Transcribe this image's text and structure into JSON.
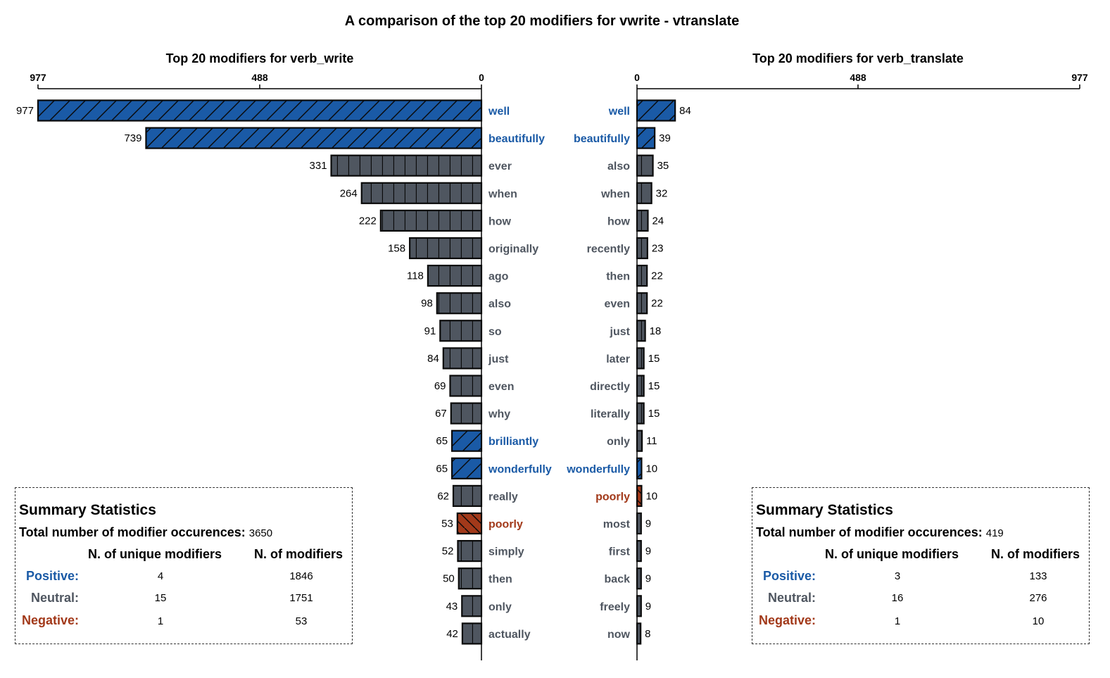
{
  "title": "A comparison of the top 20 modifiers for vwrite - vtranslate",
  "colors": {
    "positive": "#1a5aa6",
    "neutral": "#4f5660",
    "negative": "#a2391a",
    "bar_edge": "#0a0a0a"
  },
  "chart_data": [
    {
      "type": "bar",
      "orientation": "horizontal",
      "direction": "right-to-left",
      "title": "Top 20 modifiers for verb_write",
      "xlim": [
        977,
        0
      ],
      "xticks": [
        "977",
        "488",
        "0"
      ],
      "categories": [
        "well",
        "beautifully",
        "ever",
        "when",
        "how",
        "originally",
        "ago",
        "also",
        "so",
        "just",
        "even",
        "why",
        "brilliantly",
        "wonderfully",
        "really",
        "poorly",
        "simply",
        "then",
        "only",
        "actually"
      ],
      "values": [
        977,
        739,
        331,
        264,
        222,
        158,
        118,
        98,
        91,
        84,
        69,
        67,
        65,
        65,
        62,
        53,
        52,
        50,
        43,
        42
      ],
      "sentiment": [
        "positive",
        "positive",
        "neutral",
        "neutral",
        "neutral",
        "neutral",
        "neutral",
        "neutral",
        "neutral",
        "neutral",
        "neutral",
        "neutral",
        "positive",
        "positive",
        "neutral",
        "negative",
        "neutral",
        "neutral",
        "neutral",
        "neutral"
      ]
    },
    {
      "type": "bar",
      "orientation": "horizontal",
      "direction": "left-to-right",
      "title": "Top 20 modifiers for verb_translate",
      "xlim": [
        0,
        977
      ],
      "xticks": [
        "0",
        "488",
        "977"
      ],
      "categories": [
        "well",
        "beautifully",
        "also",
        "when",
        "how",
        "recently",
        "then",
        "even",
        "just",
        "later",
        "directly",
        "literally",
        "only",
        "wonderfully",
        "poorly",
        "most",
        "first",
        "back",
        "freely",
        "now"
      ],
      "values": [
        84,
        39,
        35,
        32,
        24,
        23,
        22,
        22,
        18,
        15,
        15,
        15,
        11,
        10,
        10,
        9,
        9,
        9,
        9,
        8
      ],
      "sentiment": [
        "positive",
        "positive",
        "neutral",
        "neutral",
        "neutral",
        "neutral",
        "neutral",
        "neutral",
        "neutral",
        "neutral",
        "neutral",
        "neutral",
        "neutral",
        "positive",
        "negative",
        "neutral",
        "neutral",
        "neutral",
        "neutral",
        "neutral"
      ]
    }
  ],
  "stats": {
    "left": {
      "title": "Summary Statistics",
      "total_label": "Total number of modifier occurences:",
      "total_value": "3650",
      "col_unique": "N. of unique modifiers",
      "col_count": "N. of modifiers",
      "rows": [
        {
          "label": "Positive:",
          "unique": "4",
          "count": "1846"
        },
        {
          "label": "Neutral:",
          "unique": "15",
          "count": "1751"
        },
        {
          "label": "Negative:",
          "unique": "1",
          "count": "53"
        }
      ]
    },
    "right": {
      "title": "Summary Statistics",
      "total_label": "Total number of modifier occurences:",
      "total_value": "419",
      "col_unique": "N. of unique modifiers",
      "col_count": "N. of modifiers",
      "rows": [
        {
          "label": "Positive:",
          "unique": "3",
          "count": "133"
        },
        {
          "label": "Neutral:",
          "unique": "16",
          "count": "276"
        },
        {
          "label": "Negative:",
          "unique": "1",
          "count": "10"
        }
      ]
    }
  }
}
